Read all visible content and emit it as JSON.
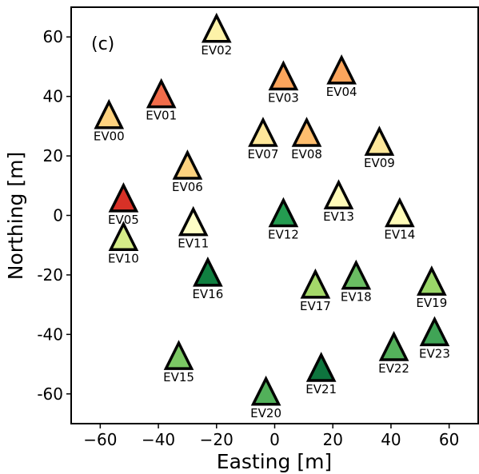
{
  "chart_data": {
    "type": "scatter",
    "marker": "triangle",
    "panel_label": "(c)",
    "xlabel": "Easting [m]",
    "ylabel": "Northing [m]",
    "xlim": [
      -70,
      70
    ],
    "ylim": [
      -70,
      70
    ],
    "xticks": [
      -60,
      -40,
      -20,
      0,
      20,
      40,
      60
    ],
    "yticks": [
      -60,
      -40,
      -20,
      0,
      20,
      40,
      60
    ],
    "xtick_labels": [
      "−60",
      "−40",
      "−20",
      "0",
      "20",
      "40",
      "60"
    ],
    "ytick_labels": [
      "-60",
      "-40",
      "-20",
      "0",
      "20",
      "40",
      "60"
    ],
    "grid": false,
    "points": [
      {
        "label": "EV00",
        "x": -57,
        "y": 33,
        "color": "#fed27f"
      },
      {
        "label": "EV01",
        "x": -39,
        "y": 40,
        "color": "#f26c4a"
      },
      {
        "label": "EV02",
        "x": -20,
        "y": 62,
        "color": "#fdf2a8"
      },
      {
        "label": "EV03",
        "x": 3,
        "y": 46,
        "color": "#fca55c"
      },
      {
        "label": "EV04",
        "x": 23,
        "y": 48,
        "color": "#fca55c"
      },
      {
        "label": "EV05",
        "x": -52,
        "y": 5,
        "color": "#d83127"
      },
      {
        "label": "EV06",
        "x": -30,
        "y": 16,
        "color": "#fed27f"
      },
      {
        "label": "EV07",
        "x": -4,
        "y": 27,
        "color": "#fee79a"
      },
      {
        "label": "EV08",
        "x": 11,
        "y": 27,
        "color": "#fdbd6e"
      },
      {
        "label": "EV09",
        "x": 36,
        "y": 24,
        "color": "#fee79a"
      },
      {
        "label": "EV10",
        "x": -52,
        "y": -8,
        "color": "#d5ec88"
      },
      {
        "label": "EV11",
        "x": -28,
        "y": -3,
        "color": "#fefec6"
      },
      {
        "label": "EV12",
        "x": 3,
        "y": 0,
        "color": "#249c51"
      },
      {
        "label": "EV13",
        "x": 22,
        "y": 6,
        "color": "#fffbb9"
      },
      {
        "label": "EV14",
        "x": 43,
        "y": 0,
        "color": "#fffbb9"
      },
      {
        "label": "EV15",
        "x": -33,
        "y": -48,
        "color": "#7bc864"
      },
      {
        "label": "EV16",
        "x": -23,
        "y": -20,
        "color": "#107f40"
      },
      {
        "label": "EV17",
        "x": 14,
        "y": -24,
        "color": "#a4d869"
      },
      {
        "label": "EV18",
        "x": 28,
        "y": -21,
        "color": "#6abd63"
      },
      {
        "label": "EV19",
        "x": 54,
        "y": -23,
        "color": "#9ad768"
      },
      {
        "label": "EV20",
        "x": -3,
        "y": -60,
        "color": "#52b05a"
      },
      {
        "label": "EV21",
        "x": 16,
        "y": -52,
        "color": "#0e753e"
      },
      {
        "label": "EV22",
        "x": 41,
        "y": -45,
        "color": "#54b15b"
      },
      {
        "label": "EV23",
        "x": 55,
        "y": -40,
        "color": "#40a456"
      }
    ]
  }
}
